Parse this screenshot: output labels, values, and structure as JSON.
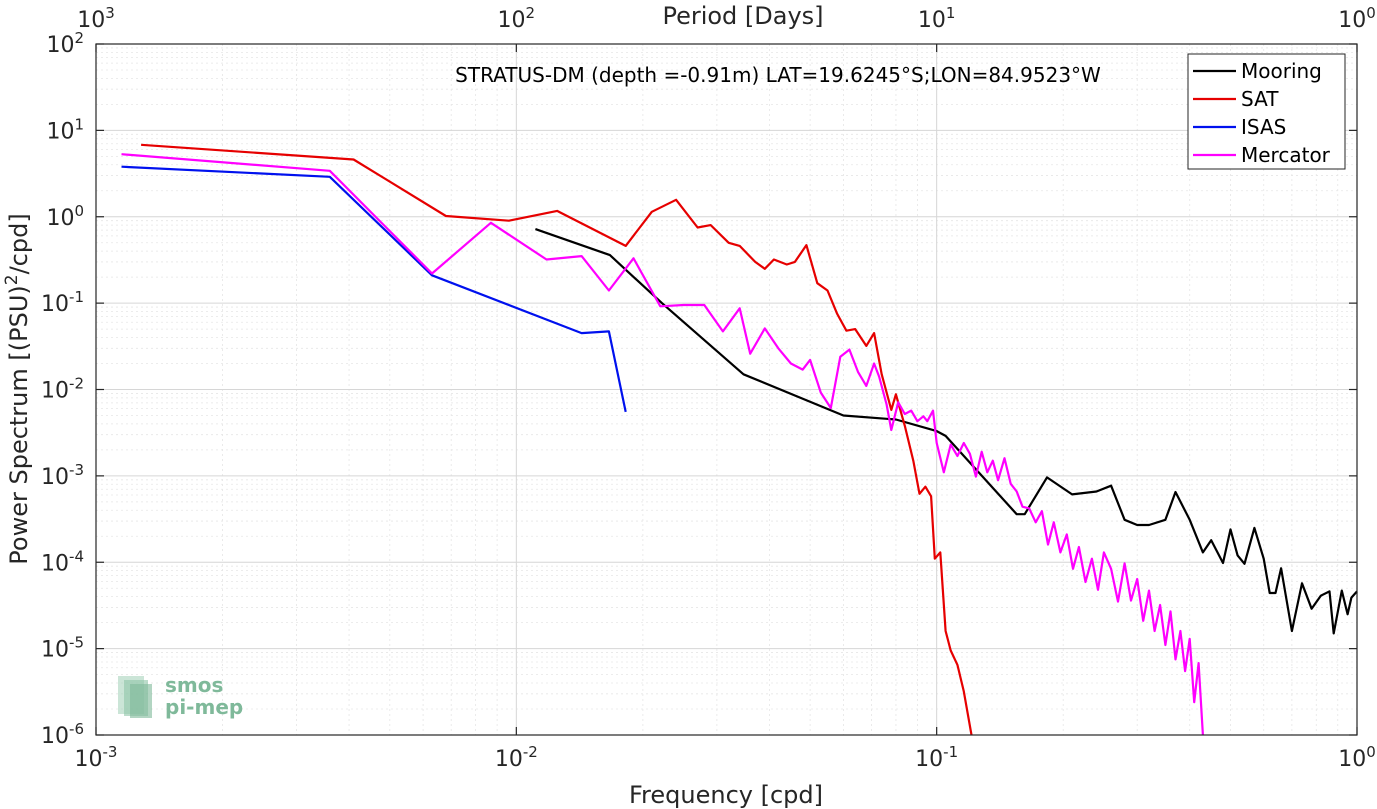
{
  "chart_data": {
    "type": "line",
    "title": "STRATUS-DM (depth =-0.91m) LAT=19.6245°S;LON=84.9523°W",
    "xlabel": "Frequency [cpd]",
    "ylabel": "Power Spectrum [(PSU)²/cpd]",
    "top_xlabel": "Period [Days]",
    "x_scale": "log",
    "y_scale": "log",
    "xlim": [
      0.001,
      1
    ],
    "ylim": [
      1e-06,
      100
    ],
    "grid": true,
    "legend_position": "top-right",
    "x_ticks": [
      {
        "value": 0.001,
        "base": "10",
        "exp": "-3"
      },
      {
        "value": 0.01,
        "base": "10",
        "exp": "-2"
      },
      {
        "value": 0.1,
        "base": "10",
        "exp": "-1"
      },
      {
        "value": 1,
        "base": "10",
        "exp": "0"
      }
    ],
    "top_ticks": [
      {
        "value": 0.001,
        "base": "10",
        "exp": "3"
      },
      {
        "value": 0.01,
        "base": "10",
        "exp": "2"
      },
      {
        "value": 0.1,
        "base": "10",
        "exp": "1"
      },
      {
        "value": 1,
        "base": "10",
        "exp": "0"
      }
    ],
    "y_ticks": [
      {
        "value": 1e-06,
        "base": "10",
        "exp": "-6"
      },
      {
        "value": 1e-05,
        "base": "10",
        "exp": "-5"
      },
      {
        "value": 0.0001,
        "base": "10",
        "exp": "-4"
      },
      {
        "value": 0.001,
        "base": "10",
        "exp": "-3"
      },
      {
        "value": 0.01,
        "base": "10",
        "exp": "-2"
      },
      {
        "value": 0.1,
        "base": "10",
        "exp": "-1"
      },
      {
        "value": 1,
        "base": "10",
        "exp": "0"
      },
      {
        "value": 10,
        "base": "10",
        "exp": "1"
      },
      {
        "value": 100,
        "base": "10",
        "exp": "2"
      }
    ],
    "series": [
      {
        "name": "Mooring",
        "color": "#000000",
        "points": [
          [
            0.0111,
            0.72
          ],
          [
            0.0167,
            0.36
          ],
          [
            0.0222,
            0.1
          ],
          [
            0.0347,
            0.015
          ],
          [
            0.06,
            0.005
          ],
          [
            0.08,
            0.0045
          ],
          [
            0.1,
            0.0033
          ],
          [
            0.105,
            0.0029
          ],
          [
            0.155,
            0.00036
          ],
          [
            0.162,
            0.00036
          ],
          [
            0.183,
            0.00096
          ],
          [
            0.21,
            0.00061
          ],
          [
            0.24,
            0.00066
          ],
          [
            0.26,
            0.00077
          ],
          [
            0.28,
            0.00031
          ],
          [
            0.3,
            0.00027
          ],
          [
            0.32,
            0.00027
          ],
          [
            0.35,
            0.00031
          ],
          [
            0.37,
            0.00065
          ],
          [
            0.4,
            0.00031
          ],
          [
            0.43,
            0.00013
          ],
          [
            0.45,
            0.00018
          ],
          [
            0.48,
            9.8e-05
          ],
          [
            0.5,
            0.00024
          ],
          [
            0.52,
            0.00012
          ],
          [
            0.54,
            9.6e-05
          ],
          [
            0.57,
            0.00025
          ],
          [
            0.6,
            0.00011
          ],
          [
            0.62,
            4.4e-05
          ],
          [
            0.64,
            4.4e-05
          ],
          [
            0.66,
            8.5e-05
          ],
          [
            0.7,
            1.6e-05
          ],
          [
            0.74,
            5.7e-05
          ],
          [
            0.78,
            2.9e-05
          ],
          [
            0.82,
            4.1e-05
          ],
          [
            0.86,
            4.6e-05
          ],
          [
            0.88,
            1.5e-05
          ],
          [
            0.92,
            4.7e-05
          ],
          [
            0.95,
            2.5e-05
          ],
          [
            0.97,
            3.9e-05
          ],
          [
            1.0,
            4.6e-05
          ]
        ]
      },
      {
        "name": "SAT",
        "color": "#e60000",
        "points": [
          [
            0.00128,
            6.8
          ],
          [
            0.0041,
            4.6
          ],
          [
            0.0068,
            1.02
          ],
          [
            0.0096,
            0.9
          ],
          [
            0.0125,
            1.17
          ],
          [
            0.0182,
            0.46
          ],
          [
            0.021,
            1.14
          ],
          [
            0.024,
            1.57
          ],
          [
            0.027,
            0.75
          ],
          [
            0.029,
            0.8
          ],
          [
            0.032,
            0.5
          ],
          [
            0.034,
            0.46
          ],
          [
            0.037,
            0.3
          ],
          [
            0.039,
            0.25
          ],
          [
            0.041,
            0.32
          ],
          [
            0.044,
            0.28
          ],
          [
            0.046,
            0.3
          ],
          [
            0.049,
            0.47
          ],
          [
            0.052,
            0.17
          ],
          [
            0.055,
            0.14
          ],
          [
            0.058,
            0.075
          ],
          [
            0.061,
            0.048
          ],
          [
            0.064,
            0.05
          ],
          [
            0.068,
            0.032
          ],
          [
            0.071,
            0.045
          ],
          [
            0.074,
            0.015
          ],
          [
            0.078,
            0.0058
          ],
          [
            0.08,
            0.0088
          ],
          [
            0.084,
            0.0038
          ],
          [
            0.088,
            0.0015
          ],
          [
            0.091,
            0.00062
          ],
          [
            0.094,
            0.00075
          ],
          [
            0.097,
            0.00058
          ],
          [
            0.099,
            0.00011
          ],
          [
            0.102,
            0.00013
          ],
          [
            0.105,
            1.6e-05
          ],
          [
            0.108,
            9.5e-06
          ],
          [
            0.112,
            6.5e-06
          ],
          [
            0.116,
            3.2e-06
          ],
          [
            0.119,
            1.6e-06
          ],
          [
            0.121,
            1e-06
          ]
        ]
      },
      {
        "name": "ISAS",
        "color": "#0011ee",
        "points": [
          [
            0.00115,
            3.8
          ],
          [
            0.0036,
            2.9
          ],
          [
            0.0063,
            0.21
          ],
          [
            0.0143,
            0.045
          ],
          [
            0.0166,
            0.047
          ],
          [
            0.0182,
            0.0055
          ]
        ]
      },
      {
        "name": "Mercator",
        "color": "#ff00ff",
        "points": [
          [
            0.00115,
            5.3
          ],
          [
            0.0036,
            3.4
          ],
          [
            0.0063,
            0.22
          ],
          [
            0.0087,
            0.85
          ],
          [
            0.0118,
            0.32
          ],
          [
            0.0143,
            0.35
          ],
          [
            0.0166,
            0.14
          ],
          [
            0.019,
            0.33
          ],
          [
            0.022,
            0.092
          ],
          [
            0.025,
            0.095
          ],
          [
            0.028,
            0.095
          ],
          [
            0.031,
            0.047
          ],
          [
            0.034,
            0.087
          ],
          [
            0.036,
            0.026
          ],
          [
            0.039,
            0.051
          ],
          [
            0.042,
            0.03
          ],
          [
            0.045,
            0.02
          ],
          [
            0.048,
            0.017
          ],
          [
            0.05,
            0.022
          ],
          [
            0.053,
            0.0092
          ],
          [
            0.056,
            0.0061
          ],
          [
            0.059,
            0.024
          ],
          [
            0.062,
            0.029
          ],
          [
            0.065,
            0.016
          ],
          [
            0.068,
            0.011
          ],
          [
            0.071,
            0.02
          ],
          [
            0.073,
            0.014
          ],
          [
            0.076,
            0.0067
          ],
          [
            0.078,
            0.0034
          ],
          [
            0.081,
            0.0071
          ],
          [
            0.084,
            0.0052
          ],
          [
            0.087,
            0.0057
          ],
          [
            0.09,
            0.0043
          ],
          [
            0.093,
            0.0049
          ],
          [
            0.095,
            0.0043
          ],
          [
            0.098,
            0.0057
          ],
          [
            0.1,
            0.0024
          ],
          [
            0.104,
            0.0011
          ],
          [
            0.108,
            0.0023
          ],
          [
            0.112,
            0.0017
          ],
          [
            0.116,
            0.0024
          ],
          [
            0.12,
            0.0018
          ],
          [
            0.124,
            0.00098
          ],
          [
            0.128,
            0.0019
          ],
          [
            0.132,
            0.0011
          ],
          [
            0.136,
            0.0015
          ],
          [
            0.14,
            0.00089
          ],
          [
            0.145,
            0.0016
          ],
          [
            0.15,
            0.00081
          ],
          [
            0.155,
            0.00066
          ],
          [
            0.16,
            0.00044
          ],
          [
            0.166,
            0.00042
          ],
          [
            0.172,
            0.00029
          ],
          [
            0.178,
            0.00039
          ],
          [
            0.184,
            0.00016
          ],
          [
            0.19,
            0.00029
          ],
          [
            0.197,
            0.00013
          ],
          [
            0.204,
            0.00021
          ],
          [
            0.211,
            8.4e-05
          ],
          [
            0.218,
            0.00015
          ],
          [
            0.226,
            5.9e-05
          ],
          [
            0.234,
            0.00011
          ],
          [
            0.242,
            4.8e-05
          ],
          [
            0.25,
            0.00013
          ],
          [
            0.26,
            8.4e-05
          ],
          [
            0.27,
            3.5e-05
          ],
          [
            0.28,
            9.7e-05
          ],
          [
            0.29,
            3.6e-05
          ],
          [
            0.3,
            6.4e-05
          ],
          [
            0.31,
            2.1e-05
          ],
          [
            0.32,
            4.7e-05
          ],
          [
            0.33,
            1.6e-05
          ],
          [
            0.34,
            3.2e-05
          ],
          [
            0.35,
            1.1e-05
          ],
          [
            0.36,
            2.7e-05
          ],
          [
            0.37,
            7.5e-06
          ],
          [
            0.38,
            1.6e-05
          ],
          [
            0.39,
            5.5e-06
          ],
          [
            0.4,
            1.3e-05
          ],
          [
            0.41,
            2.4e-06
          ],
          [
            0.42,
            6.8e-06
          ],
          [
            0.43,
            1e-06
          ]
        ]
      }
    ]
  },
  "logo": {
    "line1": "smos",
    "line2": "pi-mep"
  }
}
